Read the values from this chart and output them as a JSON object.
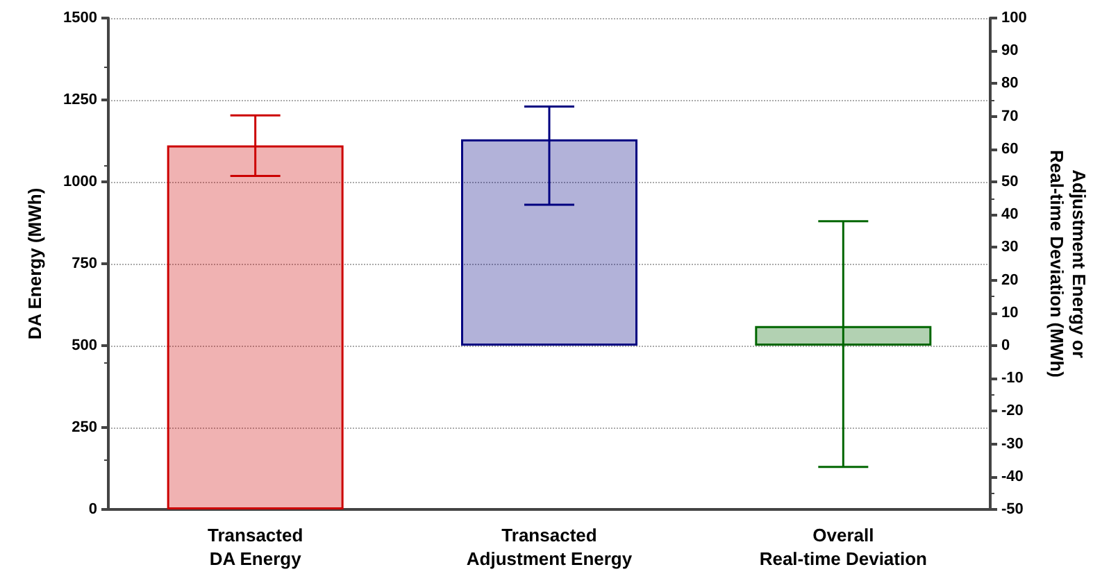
{
  "chart_data": {
    "type": "bar",
    "categories": [
      "Transacted\nDA Energy",
      "Transacted\nAdjustment Energy",
      "Overall\nReal-time Deviation"
    ],
    "ylabel": "DA Energy (MWh)",
    "y2label": "Adjustment Energy or\nReal-time Deviation (MWh)",
    "series": [
      {
        "color": "#cc0000",
        "values": [
          1111,
          null,
          null
        ],
        "errors": [
          [
            1018,
            1203
          ],
          null,
          null
        ]
      },
      {
        "axis": "y2",
        "colors": [
          "#000080",
          "#000080",
          "#006600"
        ],
        "values": [
          null,
          63,
          6
        ],
        "errors": [
          null,
          [
            43,
            73
          ],
          [
            -37,
            38
          ]
        ]
      }
    ],
    "ylim": [
      0,
      1500
    ],
    "yticks": [
      0,
      250,
      500,
      750,
      1000,
      1250,
      1500
    ],
    "y2lim": [
      -50,
      100
    ],
    "y2ticks": [
      -50,
      -40,
      -30,
      -20,
      -10,
      0,
      10,
      20,
      30,
      40,
      50,
      60,
      70,
      80,
      90,
      100
    ],
    "grid": "y"
  }
}
